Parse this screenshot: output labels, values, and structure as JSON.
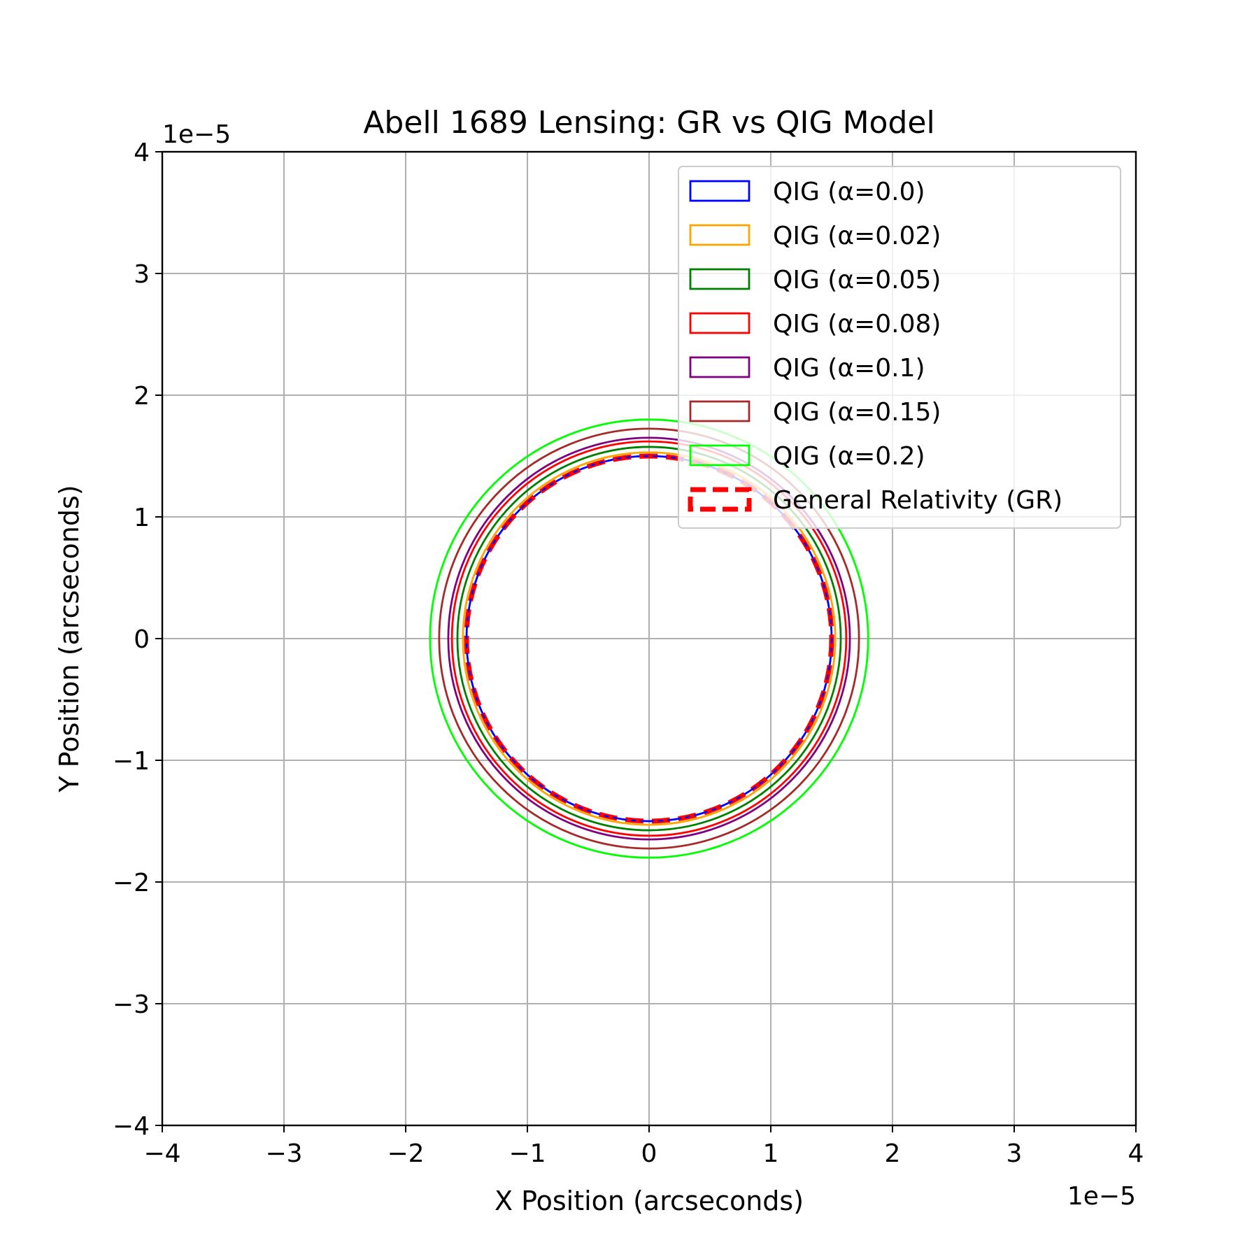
{
  "chart_data": {
    "type": "line",
    "title": "Abell 1689 Lensing: GR vs QIG Model",
    "xlabel": "X Position (arcseconds)",
    "ylabel": "Y Position (arcseconds)",
    "x_offset_label": "1e−5",
    "y_offset_label": "1e−5",
    "xlim": [
      -4,
      4
    ],
    "ylim": [
      -4,
      4
    ],
    "x_ticks": [
      -4,
      -3,
      -2,
      -1,
      0,
      1,
      2,
      3,
      4
    ],
    "y_ticks": [
      -4,
      -3,
      -2,
      -1,
      0,
      1,
      2,
      3,
      4
    ],
    "x_tick_labels": [
      "−4",
      "−3",
      "−2",
      "−1",
      "0",
      "1",
      "2",
      "3",
      "4"
    ],
    "y_tick_labels": [
      "−4",
      "−3",
      "−2",
      "−1",
      "0",
      "1",
      "2",
      "3",
      "4"
    ],
    "grid": true,
    "legend_position": "top-right",
    "series": [
      {
        "name": "QIG (α=0.0)",
        "color": "#0000ff",
        "style": "solid",
        "center": [
          0,
          0
        ],
        "radius": 1.5
      },
      {
        "name": "QIG (α=0.02)",
        "color": "#ffa500",
        "style": "solid",
        "center": [
          0,
          0
        ],
        "radius": 1.53
      },
      {
        "name": "QIG (α=0.05)",
        "color": "#008000",
        "style": "solid",
        "center": [
          0,
          0
        ],
        "radius": 1.575
      },
      {
        "name": "QIG (α=0.08)",
        "color": "#ff0000",
        "style": "solid",
        "center": [
          0,
          0
        ],
        "radius": 1.62
      },
      {
        "name": "QIG (α=0.1)",
        "color": "#800080",
        "style": "solid",
        "center": [
          0,
          0
        ],
        "radius": 1.65
      },
      {
        "name": "QIG (α=0.15)",
        "color": "#a52a2a",
        "style": "solid",
        "center": [
          0,
          0
        ],
        "radius": 1.725
      },
      {
        "name": "QIG (α=0.2)",
        "color": "#00ff00",
        "style": "solid",
        "center": [
          0,
          0
        ],
        "radius": 1.8
      },
      {
        "name": "General Relativity (GR)",
        "color": "#ff0000",
        "style": "dashed",
        "center": [
          0,
          0
        ],
        "radius": 1.5
      }
    ]
  }
}
